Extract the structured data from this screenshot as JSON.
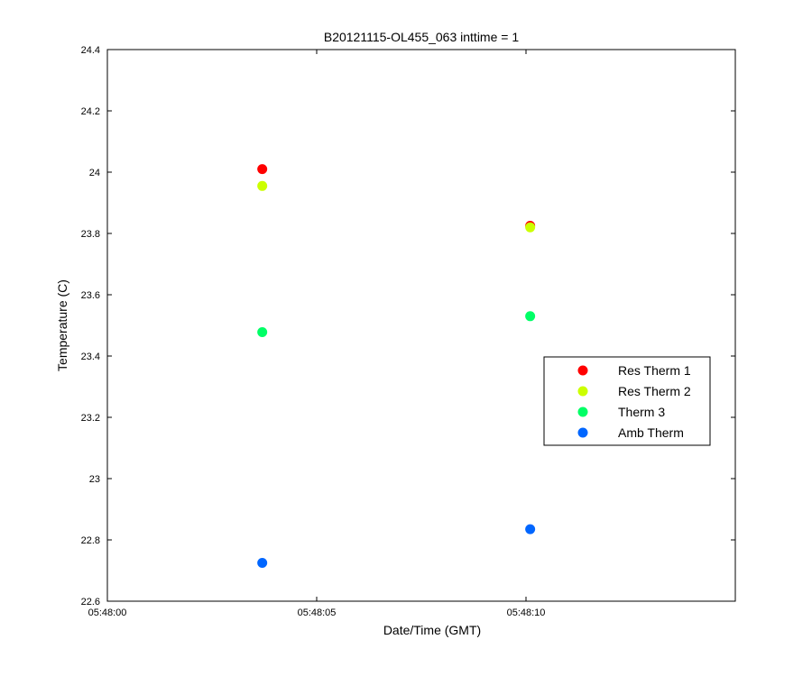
{
  "chart_data": {
    "type": "scatter",
    "title": "B20121115-OL455_063 inttime = 1",
    "xlabel": "Date/Time (GMT)",
    "ylabel": "Temperature (C)",
    "xlim": [
      "05:48:00",
      "05:48:15"
    ],
    "ylim": [
      22.6,
      24.4
    ],
    "x_ticks": [
      "05:48:00",
      "05:48:05",
      "05:48:10"
    ],
    "y_ticks": [
      22.6,
      22.8,
      23,
      23.2,
      23.4,
      23.6,
      23.8,
      24,
      24.2,
      24.4
    ],
    "y_tick_labels": [
      "22.6",
      "22.8",
      "23",
      "23.2",
      "23.4",
      "23.6",
      "23.8",
      "24",
      "24.2",
      "24.4"
    ],
    "grid": false,
    "legend_position": "right",
    "x": [
      "05:48:03.7",
      "05:48:10.1"
    ],
    "series": [
      {
        "name": "Res Therm 1",
        "color": "#ff0000",
        "values": [
          24.01,
          23.825
        ]
      },
      {
        "name": "Res Therm 2",
        "color": "#ccff00",
        "values": [
          23.955,
          23.82
        ]
      },
      {
        "name": "Therm 3",
        "color": "#00ff66",
        "values": [
          23.478,
          23.53
        ]
      },
      {
        "name": "Amb Therm",
        "color": "#0066ff",
        "values": [
          22.725,
          22.835
        ]
      }
    ]
  }
}
